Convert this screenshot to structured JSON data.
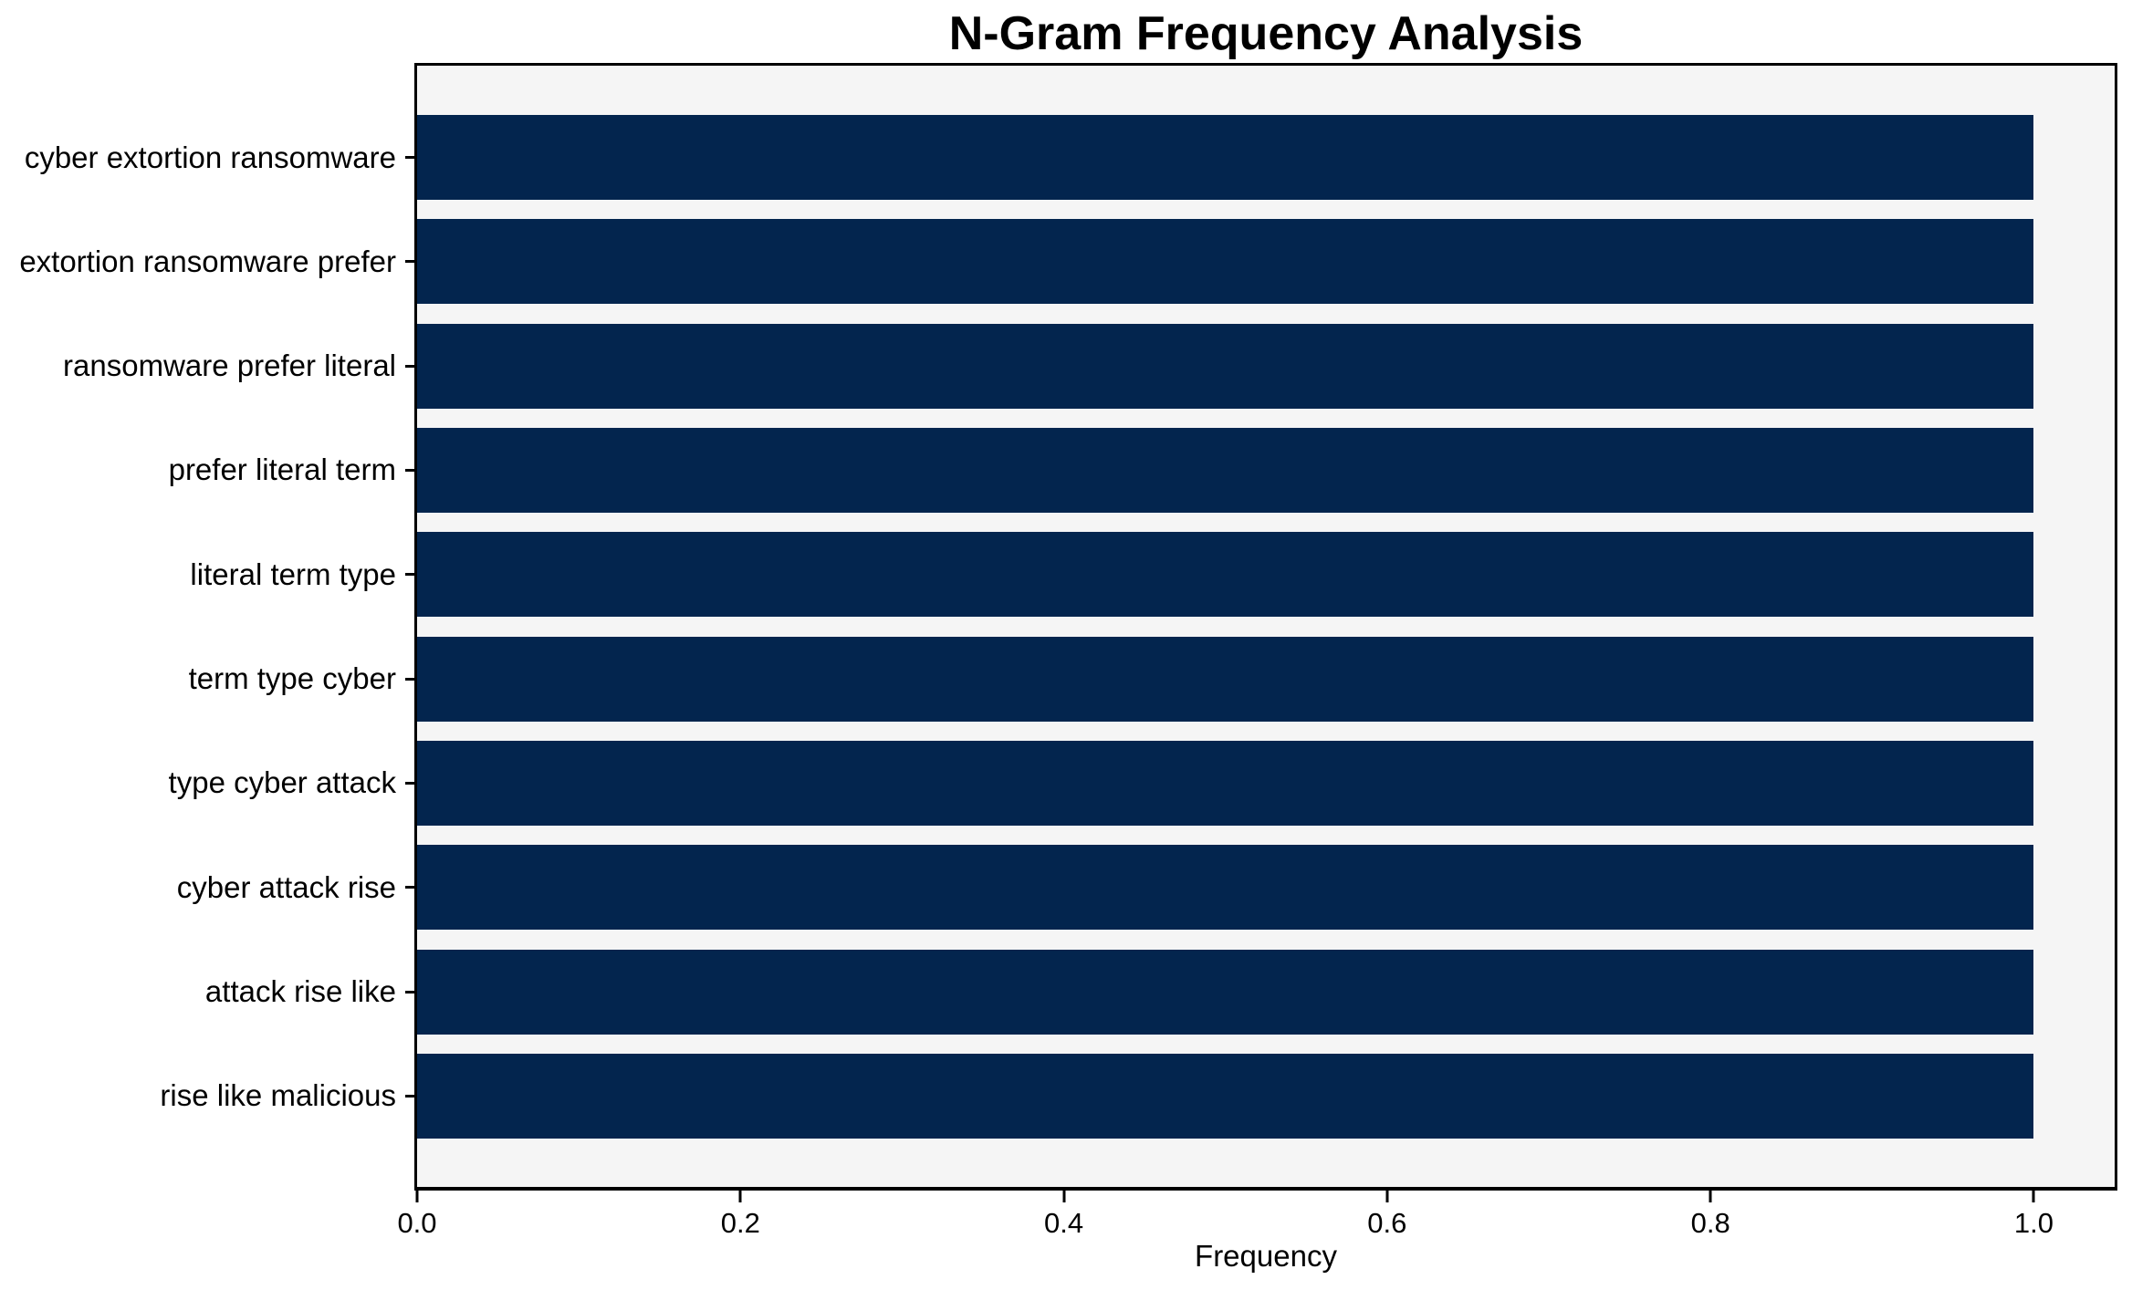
{
  "chart_data": {
    "type": "bar",
    "orientation": "horizontal",
    "title": "N-Gram Frequency Analysis",
    "xlabel": "Frequency",
    "ylabel": "",
    "categories": [
      "cyber extortion ransomware",
      "extortion ransomware prefer",
      "ransomware prefer literal",
      "prefer literal term",
      "literal term type",
      "term type cyber",
      "type cyber attack",
      "cyber attack rise",
      "attack rise like",
      "rise like malicious"
    ],
    "values": [
      1.0,
      1.0,
      1.0,
      1.0,
      1.0,
      1.0,
      1.0,
      1.0,
      1.0,
      1.0
    ],
    "xlim": [
      0,
      1.05
    ],
    "xticks": [
      0.0,
      0.2,
      0.4,
      0.6,
      0.8,
      1.0
    ],
    "xtick_labels": [
      "0.0",
      "0.2",
      "0.4",
      "0.6",
      "0.8",
      "1.0"
    ],
    "grid": false,
    "legend": "none",
    "colors": {
      "bar": "#03254e",
      "plot_background": "#f5f5f5",
      "figure_background": "#ffffff",
      "spine": "#000000",
      "text": "#000000"
    }
  }
}
